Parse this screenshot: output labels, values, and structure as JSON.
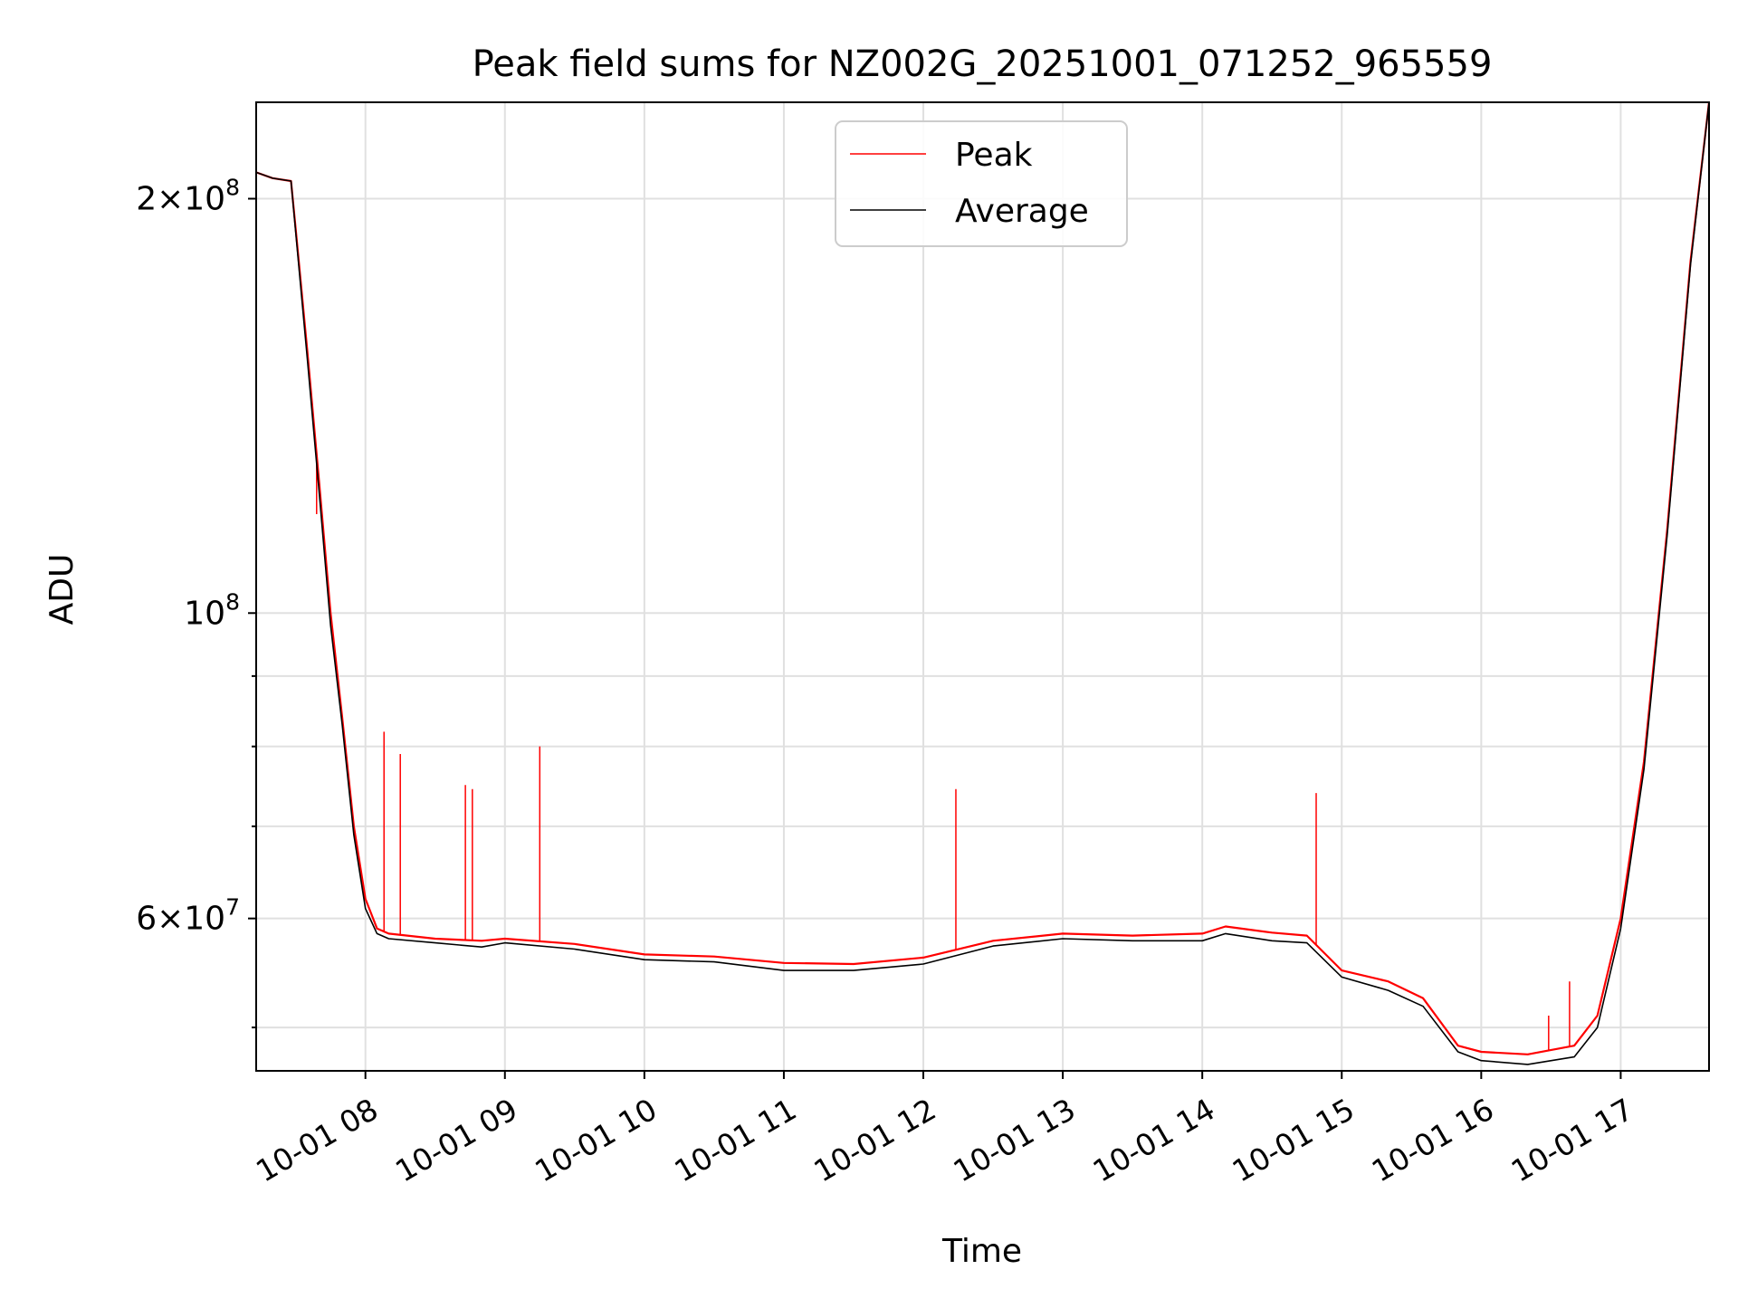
{
  "chart_data": {
    "type": "line",
    "title": "Peak field sums for NZ002G_20251001_071252_965559",
    "xlabel": "Time",
    "ylabel": "ADU",
    "y_scale": "log",
    "ylim": [
      46500000,
      235000000
    ],
    "xlim": [
      "2025-10-01 07:13",
      "2025-10-01 17:38"
    ],
    "grid": true,
    "legend_position": "top-center",
    "x_ticks": [
      {
        "value": "2025-10-01 08:00",
        "label": "10-01 08"
      },
      {
        "value": "2025-10-01 09:00",
        "label": "10-01 09"
      },
      {
        "value": "2025-10-01 10:00",
        "label": "10-01 10"
      },
      {
        "value": "2025-10-01 11:00",
        "label": "10-01 11"
      },
      {
        "value": "2025-10-01 12:00",
        "label": "10-01 12"
      },
      {
        "value": "2025-10-01 13:00",
        "label": "10-01 13"
      },
      {
        "value": "2025-10-01 14:00",
        "label": "10-01 14"
      },
      {
        "value": "2025-10-01 15:00",
        "label": "10-01 15"
      },
      {
        "value": "2025-10-01 16:00",
        "label": "10-01 16"
      },
      {
        "value": "2025-10-01 17:00",
        "label": "10-01 17"
      }
    ],
    "y_ticks_major": [
      {
        "value": 60000000,
        "base": "6",
        "exp": "7"
      },
      {
        "value": 100000000,
        "base": "",
        "exp": "8"
      },
      {
        "value": 200000000,
        "base": "2",
        "exp": "8"
      }
    ],
    "y_ticks_minor": [
      50000000,
      70000000,
      80000000,
      90000000
    ],
    "series": [
      {
        "name": "Peak",
        "color": "#ff0000",
        "x": [
          "2025-10-01 07:13",
          "2025-10-01 07:20",
          "2025-10-01 07:28",
          "2025-10-01 07:30",
          "2025-10-01 07:35",
          "2025-10-01 07:40",
          "2025-10-01 07:45",
          "2025-10-01 07:50",
          "2025-10-01 07:55",
          "2025-10-01 08:00",
          "2025-10-01 08:05",
          "2025-10-01 08:10",
          "2025-10-01 08:30",
          "2025-10-01 08:50",
          "2025-10-01 09:00",
          "2025-10-01 09:30",
          "2025-10-01 10:00",
          "2025-10-01 10:30",
          "2025-10-01 11:00",
          "2025-10-01 11:30",
          "2025-10-01 12:00",
          "2025-10-01 12:30",
          "2025-10-01 13:00",
          "2025-10-01 13:30",
          "2025-10-01 14:00",
          "2025-10-01 14:10",
          "2025-10-01 14:30",
          "2025-10-01 14:45",
          "2025-10-01 15:00",
          "2025-10-01 15:20",
          "2025-10-01 15:35",
          "2025-10-01 15:50",
          "2025-10-01 16:00",
          "2025-10-01 16:20",
          "2025-10-01 16:40",
          "2025-10-01 16:50",
          "2025-10-01 17:00",
          "2025-10-01 17:10",
          "2025-10-01 17:20",
          "2025-10-01 17:30",
          "2025-10-01 17:38"
        ],
        "values": [
          209000000,
          207000000,
          206000000,
          190000000,
          155000000,
          125000000,
          100000000,
          84000000,
          70000000,
          62000000,
          59000000,
          58500000,
          58000000,
          57800000,
          58000000,
          57500000,
          56500000,
          56300000,
          55700000,
          55600000,
          56200000,
          57800000,
          58500000,
          58300000,
          58500000,
          59200000,
          58600000,
          58300000,
          55000000,
          54000000,
          52500000,
          48500000,
          48000000,
          47800000,
          48500000,
          51000000,
          60000000,
          78000000,
          115000000,
          180000000,
          235000000
        ]
      },
      {
        "name": "Average",
        "color": "#000000",
        "x": [
          "2025-10-01 07:13",
          "2025-10-01 07:20",
          "2025-10-01 07:28",
          "2025-10-01 07:30",
          "2025-10-01 07:35",
          "2025-10-01 07:40",
          "2025-10-01 07:45",
          "2025-10-01 07:50",
          "2025-10-01 07:55",
          "2025-10-01 08:00",
          "2025-10-01 08:05",
          "2025-10-01 08:10",
          "2025-10-01 08:30",
          "2025-10-01 08:50",
          "2025-10-01 09:00",
          "2025-10-01 09:30",
          "2025-10-01 10:00",
          "2025-10-01 10:30",
          "2025-10-01 11:00",
          "2025-10-01 11:30",
          "2025-10-01 12:00",
          "2025-10-01 12:30",
          "2025-10-01 13:00",
          "2025-10-01 13:30",
          "2025-10-01 14:00",
          "2025-10-01 14:10",
          "2025-10-01 14:30",
          "2025-10-01 14:45",
          "2025-10-01 15:00",
          "2025-10-01 15:20",
          "2025-10-01 15:35",
          "2025-10-01 15:50",
          "2025-10-01 16:00",
          "2025-10-01 16:20",
          "2025-10-01 16:40",
          "2025-10-01 16:50",
          "2025-10-01 17:00",
          "2025-10-01 17:10",
          "2025-10-01 17:20",
          "2025-10-01 17:30",
          "2025-10-01 17:38"
        ],
        "values": [
          209000000,
          207000000,
          206000000,
          189000000,
          153000000,
          123000000,
          98000000,
          83000000,
          69000000,
          61000000,
          58500000,
          58000000,
          57600000,
          57200000,
          57600000,
          57000000,
          56000000,
          55800000,
          55000000,
          55000000,
          55600000,
          57300000,
          58000000,
          57800000,
          57800000,
          58500000,
          57800000,
          57600000,
          54400000,
          53200000,
          51800000,
          48000000,
          47300000,
          47000000,
          47600000,
          50000000,
          59000000,
          77000000,
          114000000,
          179000000,
          235000000
        ]
      }
    ],
    "spikes": [
      {
        "x": "2025-10-01 07:39",
        "value": 118000000
      },
      {
        "x": "2025-10-01 07:48",
        "value": 89000000
      },
      {
        "x": "2025-10-01 07:51",
        "value": 81000000
      },
      {
        "x": "2025-10-01 08:08",
        "value": 82000000
      },
      {
        "x": "2025-10-01 08:15",
        "value": 79000000
      },
      {
        "x": "2025-10-01 08:43",
        "value": 75000000
      },
      {
        "x": "2025-10-01 08:46",
        "value": 74500000
      },
      {
        "x": "2025-10-01 09:15",
        "value": 80000000
      },
      {
        "x": "2025-10-01 12:14",
        "value": 74500000
      },
      {
        "x": "2025-10-01 14:49",
        "value": 74000000
      },
      {
        "x": "2025-10-01 16:29",
        "value": 51000000
      },
      {
        "x": "2025-10-01 16:38",
        "value": 54000000
      }
    ]
  }
}
